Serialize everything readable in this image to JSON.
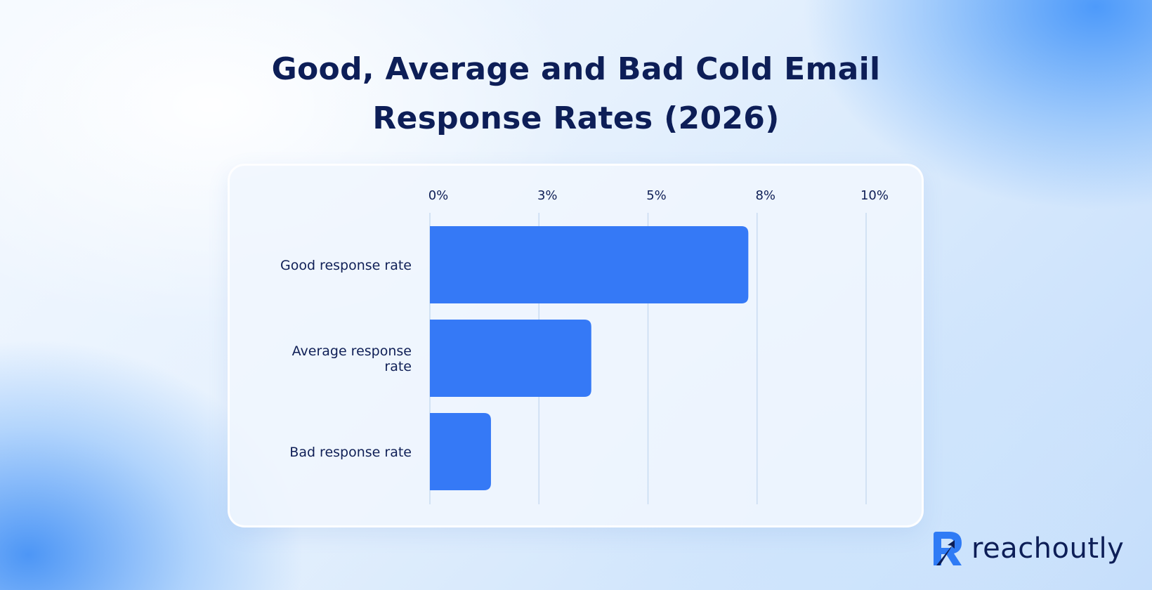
{
  "chart_data": {
    "type": "bar",
    "orientation": "horizontal",
    "title": "Good, Average and Bad Cold Email Response Rates (2026)",
    "title_lines": [
      "Good, Average and Bad Cold Email",
      "Response Rates (2026)"
    ],
    "categories": [
      [
        "Good response rate"
      ],
      [
        "Average response",
        "rate"
      ],
      [
        "Bad response rate"
      ]
    ],
    "category_names": [
      "Good response rate",
      "Average response rate",
      "Bad response rate"
    ],
    "values": [
      7.3,
      3.7,
      1.4
    ],
    "x_ticks": [
      0,
      2.5,
      5,
      7.5,
      10
    ],
    "x_tick_labels": [
      "0%",
      "3%",
      "5%",
      "8%",
      "10%"
    ],
    "xlim": [
      0,
      10
    ],
    "xlabel": "",
    "ylabel": "",
    "grid": "vertical",
    "axis_position": "top",
    "bar_color": "#3579f6",
    "grid_color": "#c9dbf1",
    "text_color": "#0f1f56"
  },
  "brand": {
    "name": "reachoutly",
    "logo_icon": "reachoutly-r-arrow-icon",
    "color_dark": "#0d1e57",
    "color_accent": "#2f7bf5"
  }
}
